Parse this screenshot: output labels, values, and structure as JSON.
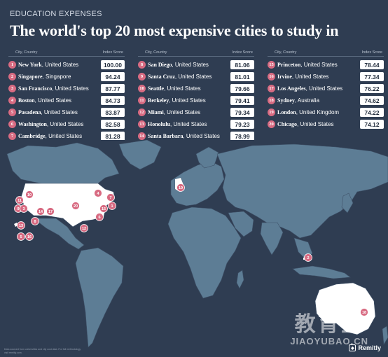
{
  "header": {
    "eyebrow": "EDUCATION EXPENSES",
    "title": "The world's top 20 most expensive cities to study in"
  },
  "table_headers": {
    "city": "City, Country",
    "score": "Index Score"
  },
  "cities": [
    {
      "rank": "1",
      "name": "New York",
      "country": ", United States",
      "score": "100.00"
    },
    {
      "rank": "2",
      "name": "Singapore",
      "country": ", Singapore",
      "score": "94.24"
    },
    {
      "rank": "3",
      "name": "San Francisco",
      "country": ", United States",
      "score": "87.77"
    },
    {
      "rank": "4",
      "name": "Boston",
      "country": ", United States",
      "score": "84.73"
    },
    {
      "rank": "5",
      "name": "Pasadena",
      "country": ", United States",
      "score": "83.87"
    },
    {
      "rank": "6",
      "name": "Washington",
      "country": ", United States",
      "score": "82.58"
    },
    {
      "rank": "7",
      "name": "Cambridge",
      "country": ", United States",
      "score": "81.28"
    },
    {
      "rank": "8",
      "name": "San Diego",
      "country": ", United States",
      "score": "81.06"
    },
    {
      "rank": "9",
      "name": "Santa Cruz",
      "country": ", United States",
      "score": "81.01"
    },
    {
      "rank": "10",
      "name": "Seattle",
      "country": ", United States",
      "score": "79.66"
    },
    {
      "rank": "11",
      "name": "Berkeley",
      "country": ", United States",
      "score": "79.41"
    },
    {
      "rank": "12",
      "name": "Miami",
      "country": ", United States",
      "score": "79.34"
    },
    {
      "rank": "13",
      "name": "Honolulu",
      "country": ", United States",
      "score": "79.23"
    },
    {
      "rank": "14",
      "name": "Santa Barbara",
      "country": ", United States",
      "score": "78.99"
    },
    {
      "rank": "15",
      "name": "Princeton",
      "country": ", United States",
      "score": "78.44"
    },
    {
      "rank": "16",
      "name": "Irvine",
      "country": ", United States",
      "score": "77.34"
    },
    {
      "rank": "17",
      "name": "Los Angeles",
      "country": ", United States",
      "score": "76.22"
    },
    {
      "rank": "18",
      "name": "Sydney",
      "country": ", Australia",
      "score": "74.62"
    },
    {
      "rank": "19",
      "name": "London",
      "country": ", United Kingdom",
      "score": "74.22"
    },
    {
      "rank": "20",
      "name": "Chicago",
      "country": ", United States",
      "score": "74.12"
    }
  ],
  "map_markers": [
    {
      "label": "10"
    },
    {
      "label": "11"
    },
    {
      "label": "9"
    },
    {
      "label": "3"
    },
    {
      "label": "14"
    },
    {
      "label": "17"
    },
    {
      "label": "8"
    },
    {
      "label": "13"
    },
    {
      "label": "5"
    },
    {
      "label": "16"
    },
    {
      "label": "20"
    },
    {
      "label": "4"
    },
    {
      "label": "7"
    },
    {
      "label": "1"
    },
    {
      "label": "15"
    },
    {
      "label": "6"
    },
    {
      "label": "12"
    },
    {
      "label": "19"
    },
    {
      "label": "2"
    },
    {
      "label": "18"
    }
  ],
  "colors": {
    "background": "#2f3d52",
    "ocean": "#2f3d52",
    "land": "#5d7d95",
    "usa": "#ffffff",
    "marker": "#d86b82"
  },
  "watermark": {
    "big": "教育宝",
    "small": "JIAOYUBAO.CN"
  },
  "brand": {
    "name": "Remitly",
    "logo_icon": "shield-icon"
  },
  "source_note": "Data sourced from universities and city cost data. For full methodology visit remitly.com."
}
